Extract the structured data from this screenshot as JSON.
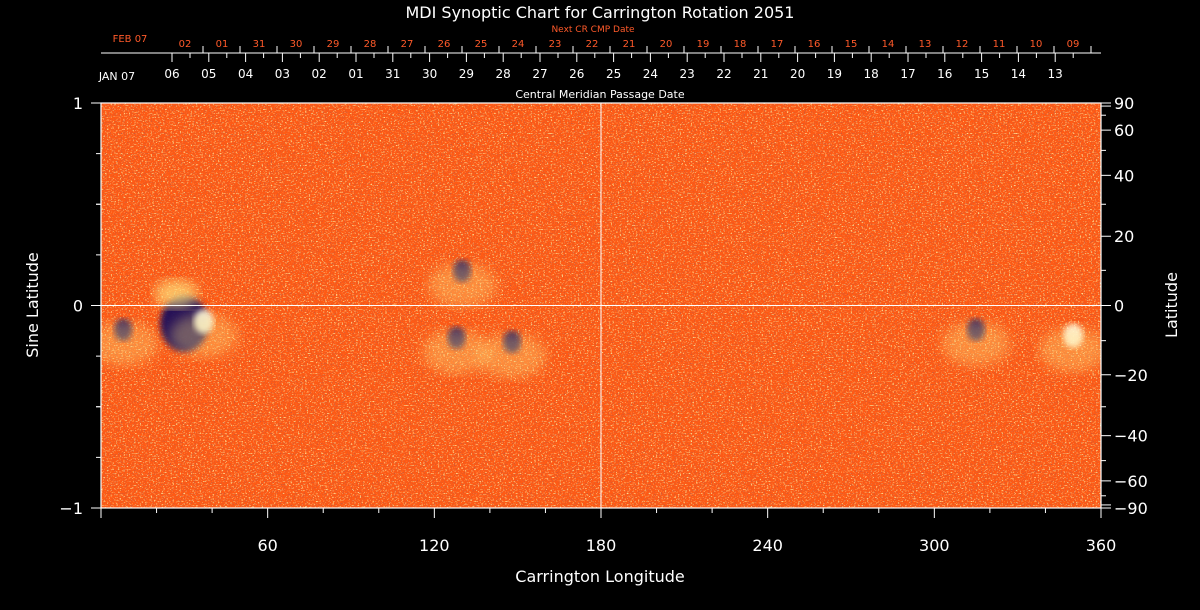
{
  "title": "MDI Synoptic Chart for Carrington Rotation 2051",
  "top_axis": {
    "next_label": "Next CR CMP Date",
    "next_month": "FEB 07",
    "next_dates": [
      "02",
      "01",
      "31",
      "30",
      "29",
      "28",
      "27",
      "26",
      "25",
      "24",
      "23",
      "22",
      "21",
      "20",
      "19",
      "18",
      "17",
      "16",
      "15",
      "14",
      "13",
      "12",
      "11",
      "10",
      "09"
    ],
    "month": "JAN 07",
    "dates": [
      "06",
      "05",
      "04",
      "03",
      "02",
      "01",
      "31",
      "30",
      "29",
      "28",
      "27",
      "26",
      "25",
      "24",
      "23",
      "22",
      "21",
      "20",
      "19",
      "18",
      "17",
      "16",
      "15",
      "14",
      "13"
    ],
    "cmp_label": "Central Meridian Passage Date"
  },
  "colors": {
    "background": "#000000",
    "map_base": "#ff5a14",
    "positive_field": "#ffe680",
    "negative_field": "#1a0d5a",
    "accent_red": "#ff5a2a"
  },
  "chart_data": {
    "type": "heatmap",
    "title": "MDI Synoptic Chart for Carrington Rotation 2051",
    "xlabel": "Carrington Longitude",
    "ylabel": "Sine Latitude",
    "y2label": "Latitude",
    "xlim": [
      0,
      360
    ],
    "ylim": [
      -1,
      1
    ],
    "x_ticks": [
      60,
      120,
      180,
      240,
      300,
      360
    ],
    "y_ticks": [
      {
        "v": 1,
        "label": "1"
      },
      {
        "v": 0,
        "label": "0"
      },
      {
        "v": -1,
        "label": "−1"
      }
    ],
    "y2_ticks": [
      {
        "deg": 90,
        "label": "90"
      },
      {
        "deg": 60,
        "label": "60"
      },
      {
        "deg": 40,
        "label": "40"
      },
      {
        "deg": 20,
        "label": "20"
      },
      {
        "deg": 0,
        "label": "0"
      },
      {
        "deg": -20,
        "label": "−20"
      },
      {
        "deg": -40,
        "label": "−40"
      },
      {
        "deg": -60,
        "label": "−60"
      },
      {
        "deg": -90,
        "label": "−90"
      }
    ],
    "reference_lines": {
      "longitude": 180,
      "sine_latitude": 0
    },
    "active_regions": [
      {
        "lon": 30,
        "sinlat": -0.09,
        "polarity": "mixed"
      },
      {
        "lon": 8,
        "sinlat": -0.12,
        "polarity": "negative"
      },
      {
        "lon": 37,
        "sinlat": -0.08,
        "polarity": "positive"
      },
      {
        "lon": 148,
        "sinlat": -0.18,
        "polarity": "negative"
      },
      {
        "lon": 130,
        "sinlat": 0.17,
        "polarity": "negative"
      },
      {
        "lon": 128,
        "sinlat": -0.16,
        "polarity": "negative"
      },
      {
        "lon": 315,
        "sinlat": -0.12,
        "polarity": "negative"
      },
      {
        "lon": 350,
        "sinlat": -0.15,
        "polarity": "positive"
      }
    ]
  }
}
